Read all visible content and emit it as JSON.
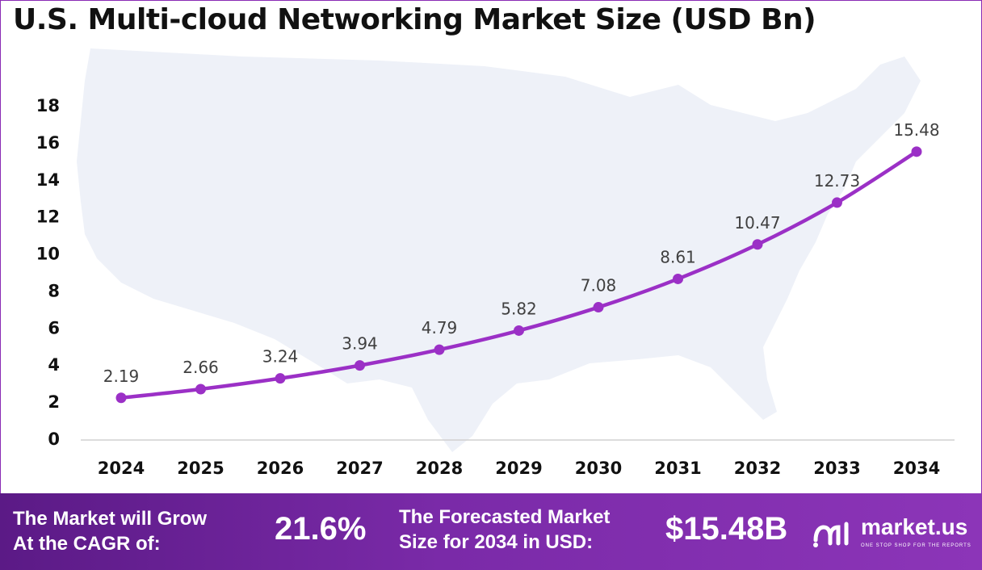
{
  "title": "U.S. Multi-cloud Networking Market Size (USD Bn)",
  "colors": {
    "line": "#9b30c6",
    "marker": "#9b30c6",
    "footer_start": "#5b1a86",
    "footer_end": "#8c35b8",
    "map": "#eef1f8"
  },
  "chart_data": {
    "type": "line",
    "categories": [
      "2024",
      "2025",
      "2026",
      "2027",
      "2028",
      "2029",
      "2030",
      "2031",
      "2032",
      "2033",
      "2034"
    ],
    "values": [
      2.19,
      2.66,
      3.24,
      3.94,
      4.79,
      5.82,
      7.08,
      8.61,
      10.47,
      12.73,
      15.48
    ],
    "data_labels": [
      "2.19",
      "2.66",
      "3.24",
      "3.94",
      "4.79",
      "5.82",
      "7.08",
      "8.61",
      "10.47",
      "12.73",
      "15.48"
    ],
    "yticks": [
      "0",
      "2",
      "4",
      "6",
      "8",
      "10",
      "12",
      "14",
      "16",
      "18"
    ],
    "ylim": [
      0,
      18
    ],
    "xlabel": "",
    "ylabel": "",
    "grid": false,
    "background": "map of the United States"
  },
  "footer": {
    "cagr_label_line1": "The Market will Grow",
    "cagr_label_line2": "At the CAGR of:",
    "cagr_value": "21.6%",
    "forecast_label_line1": "The Forecasted Market",
    "forecast_label_line2": "Size for 2034 in USD:",
    "forecast_value": "$15.48B"
  },
  "logo": {
    "icon": "market-us-logo-icon",
    "name": "market.us",
    "tagline": "ONE STOP SHOP FOR THE REPORTS"
  }
}
